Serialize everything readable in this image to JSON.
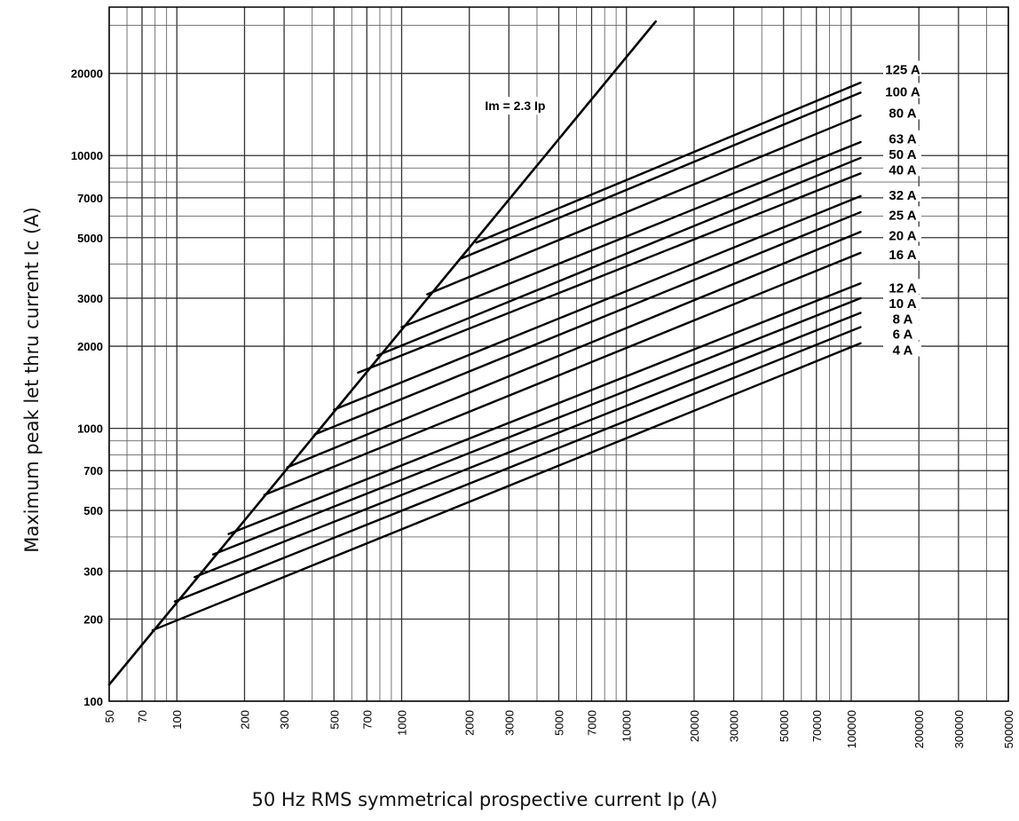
{
  "chart_data": {
    "type": "line",
    "xscale": "log",
    "yscale": "log",
    "xlim": [
      50,
      500000
    ],
    "ylim": [
      100,
      35000
    ],
    "grid": true,
    "xlabel": "50 Hz RMS symmetrical prospective current Ip (A)",
    "ylabel": "Maximum peak let thru current Ic (A)",
    "x_ticks": [
      50,
      70,
      100,
      200,
      300,
      500,
      700,
      1000,
      2000,
      3000,
      5000,
      7000,
      10000,
      20000,
      30000,
      50000,
      70000,
      100000,
      200000,
      300000,
      500000
    ],
    "x_tick_labels": [
      "50",
      "70",
      "100",
      "200",
      "300",
      "500",
      "700",
      "1000",
      "2000",
      "3000",
      "5000",
      "7000",
      "10000",
      "20000",
      "30000",
      "50000",
      "70000",
      "100000",
      "200000",
      "300000",
      "500000"
    ],
    "y_ticks": [
      100,
      200,
      300,
      500,
      700,
      1000,
      2000,
      3000,
      5000,
      7000,
      10000,
      20000
    ],
    "y_tick_labels": [
      "100",
      "200",
      "300",
      "500",
      "700",
      "1000",
      "2000",
      "3000",
      "5000",
      "7000",
      "10000",
      "20000"
    ],
    "annotation": {
      "text": "Im = 2.3 Ip",
      "x": 3200,
      "y": 15000
    },
    "limit_line": {
      "x": [
        50,
        13500
      ],
      "y": [
        115,
        31000
      ]
    },
    "series": [
      {
        "name": "125 A",
        "x": [
          2150,
          110000
        ],
        "y": [
          4800,
          18500
        ]
      },
      {
        "name": "100 A",
        "x": [
          1850,
          110000
        ],
        "y": [
          4200,
          17000
        ]
      },
      {
        "name": "80 A",
        "x": [
          1300,
          110000
        ],
        "y": [
          3100,
          14000
        ]
      },
      {
        "name": "63 A",
        "x": [
          1000,
          110000
        ],
        "y": [
          2350,
          11200
        ]
      },
      {
        "name": "50 A",
        "x": [
          780,
          110000
        ],
        "y": [
          1850,
          9800
        ]
      },
      {
        "name": "40 A",
        "x": [
          640,
          110000
        ],
        "y": [
          1600,
          8600
        ]
      },
      {
        "name": "32 A",
        "x": [
          500,
          110000
        ],
        "y": [
          1170,
          7100
        ]
      },
      {
        "name": "25 A",
        "x": [
          410,
          110000
        ],
        "y": [
          950,
          6200
        ]
      },
      {
        "name": "20 A",
        "x": [
          310,
          110000
        ],
        "y": [
          720,
          5250
        ]
      },
      {
        "name": "16 A",
        "x": [
          245,
          110000
        ],
        "y": [
          570,
          4400
        ]
      },
      {
        "name": "12 A",
        "x": [
          170,
          110000
        ],
        "y": [
          410,
          3400
        ]
      },
      {
        "name": "10 A",
        "x": [
          145,
          110000
        ],
        "y": [
          345,
          3000
        ]
      },
      {
        "name": "8 A",
        "x": [
          120,
          110000
        ],
        "y": [
          285,
          2650
        ]
      },
      {
        "name": "6 A",
        "x": [
          98,
          110000
        ],
        "y": [
          232,
          2350
        ]
      },
      {
        "name": "4 A",
        "x": [
          78,
          110000
        ],
        "y": [
          182,
          2050
        ]
      }
    ],
    "rating_labels": [
      {
        "text": "125 A",
        "y": 20500
      },
      {
        "text": "100 A",
        "y": 17000
      },
      {
        "text": "80 A",
        "y": 14200
      },
      {
        "text": "63 A",
        "y": 11400
      },
      {
        "text": "50 A",
        "y": 10000
      },
      {
        "text": "40 A",
        "y": 8800
      },
      {
        "text": "32 A",
        "y": 7100
      },
      {
        "text": "25 A",
        "y": 6000
      },
      {
        "text": "20 A",
        "y": 5050
      },
      {
        "text": "16 A",
        "y": 4300
      },
      {
        "text": "12 A",
        "y": 3250
      },
      {
        "text": "10 A",
        "y": 2850
      },
      {
        "text": "8 A",
        "y": 2500
      },
      {
        "text": "6 A",
        "y": 2200
      },
      {
        "text": "4 A",
        "y": 1920
      }
    ]
  }
}
